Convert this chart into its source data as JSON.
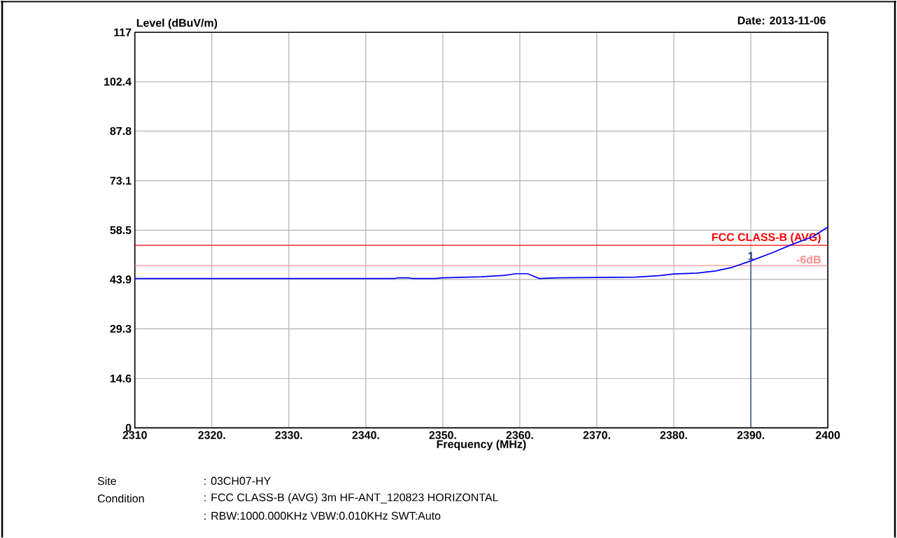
{
  "chart_data": {
    "type": "line",
    "subtitle": "Date: 2013-11-06",
    "xlabel": "Frequency (MHz)",
    "ylabel": "Level (dBuV/m)",
    "x": [
      2310,
      2320,
      2330,
      2340,
      2343.8,
      2344.2,
      2345.5,
      2346,
      2349,
      2350,
      2355,
      2358,
      2359.5,
      2361,
      2362.5,
      2365,
      2370,
      2375,
      2378,
      2380,
      2383,
      2385.4,
      2387.6,
      2390,
      2393,
      2395.4,
      2398,
      2400
    ],
    "series": [
      {
        "color": "#0000ff",
        "values": [
          44.2,
          44.2,
          44.2,
          44.2,
          44.2,
          44.4,
          44.4,
          44.2,
          44.2,
          44.4,
          44.7,
          45.1,
          45.6,
          45.6,
          44.2,
          44.4,
          44.5,
          44.6,
          45.0,
          45.5,
          45.8,
          46.4,
          47.5,
          49.4,
          52.0,
          54.3,
          56.5,
          59.4
        ]
      }
    ],
    "xlim": [
      2310,
      2400
    ],
    "xticks": [
      {
        "value": 2310,
        "label": "2310"
      },
      {
        "value": 2320,
        "label": "2320."
      },
      {
        "value": 2330,
        "label": "2330."
      },
      {
        "value": 2340,
        "label": "2340."
      },
      {
        "value": 2350,
        "label": "2350."
      },
      {
        "value": 2360,
        "label": "2360."
      },
      {
        "value": 2370,
        "label": "2370."
      },
      {
        "value": 2380,
        "label": "2380."
      },
      {
        "value": 2390,
        "label": "2390."
      },
      {
        "value": 2400,
        "label": "2400"
      }
    ],
    "ylim": [
      0,
      117
    ],
    "yticks": [
      0,
      14.6,
      29.3,
      43.9,
      58.5,
      73.1,
      87.8,
      102.4,
      117
    ],
    "ref_lines": [
      {
        "axis": "y",
        "value": 54,
        "label": "FCC CLASS-B (AVG)",
        "color": "#ff0000"
      },
      {
        "axis": "y",
        "value": 48,
        "label": "-6dB",
        "color": "#ff8c8c"
      }
    ],
    "annotations": [
      {
        "text": "1",
        "x": 2390,
        "y": 49.4
      },
      "Site",
      ": 03CH07-HY",
      "Condition",
      ": FCC CLASS-B (AVG) 3m HF-ANT_120823 HORIZONTAL",
      ": RBW:1000.000KHz VBW:0.010KHz SWT:Auto"
    ],
    "grid": true,
    "marker": "none",
    "line_style": "solid"
  }
}
